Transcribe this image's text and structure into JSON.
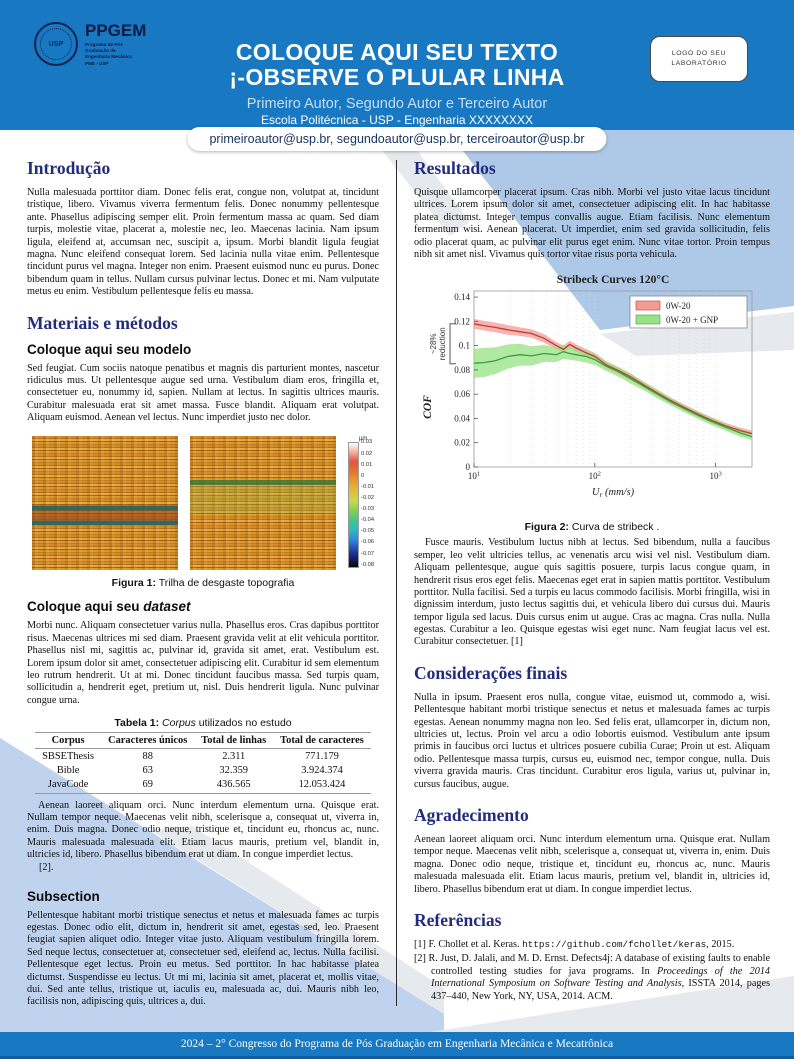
{
  "header": {
    "logo": {
      "acronym": "PPGEM",
      "emblem": "USP",
      "sub_lines": [
        "Programa de Pós",
        "Graduação de",
        "Engenharia Mecânica",
        "PME - USP"
      ]
    },
    "lab_box": {
      "line1": "LOGO DO SEU",
      "line2": "LABORATÓRIO"
    },
    "title_line1": "COLOQUE AQUI SEU TEXTO",
    "title_line2": "¡-OBSERVE O PLULAR LINHA",
    "authors": "Primeiro Autor, Segundo Autor e Terceiro Autor",
    "affiliation": "Escola Politécnica - USP - Engenharia XXXXXXXX",
    "emails": "primeiroautor@usp.br, segundoautor@usp.br, terceiroautor@usp.br"
  },
  "left_column": {
    "intro_heading": "Introdução",
    "intro_body": "Nulla malesuada porttitor diam. Donec felis erat, congue non, volutpat at, tincidunt tristique, libero. Vivamus viverra fermentum felis. Donec nonummy pellentesque ante. Phasellus adipiscing semper elit. Proin fermentum massa ac quam. Sed diam turpis, molestie vitae, placerat a, molestie nec, leo. Maecenas lacinia. Nam ipsum ligula, eleifend at, accumsan nec, suscipit a, ipsum. Morbi blandit ligula feugiat magna. Nunc eleifend consequat lorem. Sed lacinia nulla vitae enim. Pellentesque tincidunt purus vel magna. Integer non enim. Praesent euismod nunc eu purus. Donec bibendum quam in tellus. Nullam cursus pulvinar lectus. Donec et mi. Nam vulputate metus eu enim. Vestibulum pellentesque felis eu massa.",
    "methods_heading": "Materiais e métodos",
    "model_heading": "Coloque aqui seu modelo",
    "model_body": "Sed feugiat. Cum sociis natoque penatibus et magnis dis parturient montes, nascetur ridiculus mus. Ut pellentesque augue sed urna. Vestibulum diam eros, fringilla et, consectetuer eu, nonummy id, sapien. Nullam at lectus. In sagittis ultrices mauris. Curabitur malesuada erat sit amet massa. Fusce blandit. Aliquam erat volutpat. Aliquam euismod. Aenean vel lectus. Nunc imperdiet justo nec dolor.",
    "figure1": {
      "caption_label": "Figura 1:",
      "caption_text": " Trilha de desgaste topografia",
      "colorbar_unit": "µm",
      "colorbar_ticks": [
        "0.03",
        "0.02",
        "0.01",
        "0",
        "-0.01",
        "-0.02",
        "-0.03",
        "-0.04",
        "-0.05",
        "-0.06",
        "-0.07",
        "-0.08"
      ]
    },
    "dataset_heading_prefix": "Coloque aqui seu ",
    "dataset_heading_italic": "dataset",
    "dataset_body": "Morbi nunc. Aliquam consectetuer varius nulla. Phasellus eros. Cras dapibus porttitor risus. Maecenas ultrices mi sed diam. Praesent gravida velit at elit vehicula porttitor. Phasellus nisl mi, sagittis ac, pulvinar id, gravida sit amet, erat. Vestibulum est. Lorem ipsum dolor sit amet, consectetuer adipiscing elit. Curabitur id sem elementum leo rutrum hendrerit. Ut at mi. Donec tincidunt faucibus massa. Sed turpis quam, sollicitudin a, hendrerit eget, pretium ut, nisl. Duis hendrerit ligula. Nunc pulvinar congue urna.",
    "table": {
      "caption_label": "Tabela 1:",
      "caption_italic": " Corpus",
      "caption_rest": " utilizados no estudo",
      "headers": [
        "Corpus",
        "Caracteres únicos",
        "Total de linhas",
        "Total de caracteres"
      ],
      "rows": [
        [
          "SBSEThesis",
          "88",
          "2.311",
          "771.179"
        ],
        [
          "Bible",
          "63",
          "32.359",
          "3.924.374"
        ],
        [
          "JavaCode",
          "69",
          "436.565",
          "12.053.424"
        ]
      ]
    },
    "after_table_body": "Aenean laoreet aliquam orci. Nunc interdum elementum urna. Quisque erat. Nullam tempor neque. Maecenas velit nibh, scelerisque a, consequat ut, viverra in, enim. Duis magna. Donec odio neque, tristique et, tincidunt eu, rhoncus ac, nunc. Mauris malesuada malesuada elit. Etiam lacus mauris, pretium vel, blandit in, ultricies id, libero. Phasellus bibendum erat ut diam. In congue imperdiet lectus.",
    "ref_note": "[2].",
    "subsection_heading": "Subsection",
    "subsection_body": "Pellentesque habitant morbi tristique senectus et netus et malesuada fames ac turpis egestas. Donec odio elit, dictum in, hendrerit sit amet, egestas sed, leo. Praesent feugiat sapien aliquet odio. Integer vitae justo. Aliquam vestibulum fringilla lorem. Sed neque lectus, consectetuer at, consectetuer sed, eleifend ac, lectus. Nulla facilisi. Pellentesque eget lectus. Proin eu metus. Sed porttitor. In hac habitasse platea dictumst. Suspendisse eu lectus. Ut mi mi, lacinia sit amet, placerat et, mollis vitae, dui. Sed ante tellus, tristique ut, iaculis eu, malesuada ac, dui. Mauris nibh leo, facilisis non, adipiscing quis, ultrices a, dui."
  },
  "right_column": {
    "results_heading": "Resultados",
    "results_body": "Quisque ullamcorper placerat ipsum. Cras nibh. Morbi vel justo vitae lacus tincidunt ultrices. Lorem ipsum dolor sit amet, consectetuer adipiscing elit. In hac habitasse platea dictumst. Integer tempus convallis augue. Etiam facilisis. Nunc elementum fermentum wisi. Aenean placerat. Ut imperdiet, enim sed gravida sollicitudin, felis odio placerat quam, ac pulvinar elit purus eget enim. Nunc vitae tortor. Proin tempus nibh sit amet nisl. Vivamus quis tortor vitae risus porta vehicula.",
    "figure2": {
      "caption_label": "Figura 2:",
      "caption_text": " Curva de stribeck ."
    },
    "after_figure_body": "Fusce mauris. Vestibulum luctus nibh at lectus. Sed bibendum, nulla a faucibus semper, leo velit ultricies tellus, ac venenatis arcu wisi vel nisl. Vestibulum diam. Aliquam pellentesque, augue quis sagittis posuere, turpis lacus congue quam, in hendrerit risus eros eget felis. Maecenas eget erat in sapien mattis porttitor. Vestibulum porttitor. Nulla facilisi. Sed a turpis eu lacus commodo facilisis. Morbi fringilla, wisi in dignissim interdum, justo lectus sagittis dui, et vehicula libero dui cursus dui. Mauris tempor ligula sed lacus. Duis cursus enim ut augue. Cras ac magna. Cras nulla. Nulla egestas. Curabitur a leo. Quisque egestas wisi eget nunc. Nam feugiat lacus vel est. Curabitur consectetuer. [1]",
    "final_heading": "Considerações finais",
    "final_body": "Nulla in ipsum. Praesent eros nulla, congue vitae, euismod ut, commodo a, wisi. Pellentesque habitant morbi tristique senectus et netus et malesuada fames ac turpis egestas. Aenean nonummy magna non leo. Sed felis erat, ullamcorper in, dictum non, ultricies ut, lectus. Proin vel arcu a odio lobortis euismod. Vestibulum ante ipsum primis in faucibus orci luctus et ultrices posuere cubilia Curae; Proin ut est. Aliquam odio. Pellentesque massa turpis, cursus eu, euismod nec, tempor congue, nulla. Duis viverra gravida mauris. Cras tincidunt. Curabitur eros ligula, varius ut, pulvinar in, cursus faucibus, augue.",
    "ack_heading": "Agradecimento",
    "ack_body": "Aenean laoreet aliquam orci. Nunc interdum elementum urna. Quisque erat. Nullam tempor neque. Maecenas velit nibh, scelerisque a, consequat ut, viverra in, enim. Duis magna. Donec odio neque, tristique et, tincidunt eu, rhoncus ac, nunc. Mauris malesuada malesuada elit. Etiam lacus mauris, pretium vel, blandit in, ultricies id, libero. Phasellus bibendum erat ut diam. In congue imperdiet lectus.",
    "refs_heading": "Referências",
    "refs": [
      {
        "num": "[1]",
        "segments": [
          {
            "t": "plain",
            "s": "F. Chollet et al. Keras. "
          },
          {
            "t": "mono",
            "s": "https://github.com/fchollet/keras"
          },
          {
            "t": "plain",
            "s": ", 2015."
          }
        ]
      },
      {
        "num": "[2]",
        "segments": [
          {
            "t": "plain",
            "s": "R. Just, D. Jalali, and M. D. Ernst. Defects4j: A database of existing faults to enable controlled testing studies for java programs. In "
          },
          {
            "t": "italic",
            "s": "Proceedings of the 2014 International Symposium on Software Testing and Analysis"
          },
          {
            "t": "plain",
            "s": ", ISSTA 2014, pages 437–440, New York, NY, USA, 2014. ACM."
          }
        ]
      }
    ]
  },
  "footer": {
    "text": "2024 – 2° Congresso do Programa de Pós Graduação em Engenharia Mecânica e Mecatrônica"
  },
  "colors": {
    "header_blue": "#1878c2",
    "heading_navy": "#232c7c",
    "ribbon_blue": "#aec8e8",
    "ribbon_gray": "#e6e9ed",
    "series_red_line": "#c23b34",
    "series_red_band": "#f29b94",
    "series_green_line": "#3c9e3c",
    "series_green_band": "#97e283"
  },
  "chart_data": {
    "type": "line",
    "title": "Stribeck Curves 120°C",
    "xlabel_main": "U",
    "xlabel_sub": "r",
    "xlabel_rest": " (mm/s)",
    "ylabel": "COF",
    "x_scale": "log",
    "xlim": [
      10,
      2000
    ],
    "ylim": [
      0,
      0.145
    ],
    "yticks": [
      {
        "v": 0,
        "l": "0"
      },
      {
        "v": 0.02,
        "l": "0.02"
      },
      {
        "v": 0.04,
        "l": "0.04"
      },
      {
        "v": 0.06,
        "l": "0.06"
      },
      {
        "v": 0.08,
        "l": "0.08"
      },
      {
        "v": 0.1,
        "l": "0.1"
      },
      {
        "v": 0.12,
        "l": "0.12"
      },
      {
        "v": 0.14,
        "l": "0.14"
      }
    ],
    "xticks": [
      {
        "v": 10,
        "base": "10",
        "exp": "1"
      },
      {
        "v": 100,
        "base": "10",
        "exp": "2"
      },
      {
        "v": 1000,
        "base": "10",
        "exp": "3"
      }
    ],
    "legend_position": "top-right",
    "annotation": {
      "text1": "~28%",
      "text2": "reduction",
      "y_from": 0.085,
      "y_to": 0.118
    },
    "series": [
      {
        "name": "0W-20",
        "line_color": "#c23b34",
        "band_color": "#f29b94",
        "x": [
          10,
          12,
          15,
          19,
          24,
          30,
          38,
          48,
          55,
          62,
          70,
          85,
          100,
          125,
          160,
          200,
          260,
          330,
          420,
          550,
          700,
          900,
          1200,
          1600,
          2000
        ],
        "y": [
          0.118,
          0.1165,
          0.115,
          0.113,
          0.1115,
          0.11,
          0.106,
          0.1,
          0.097,
          0.101,
          0.098,
          0.094,
          0.091,
          0.084,
          0.079,
          0.074,
          0.067,
          0.061,
          0.055,
          0.049,
          0.044,
          0.039,
          0.034,
          0.03,
          0.0275
        ],
        "band": [
          0.004,
          0.004,
          0.004,
          0.004,
          0.0035,
          0.0035,
          0.0035,
          0.003,
          0.003,
          0.003,
          0.003,
          0.003,
          0.003,
          0.003,
          0.0028,
          0.0028,
          0.0026,
          0.0026,
          0.0025,
          0.0025,
          0.0025,
          0.0025,
          0.0025,
          0.0025,
          0.0025
        ]
      },
      {
        "name": "0W-20 + GNP",
        "line_color": "#3c9e3c",
        "band_color": "#97e283",
        "x": [
          10,
          12,
          15,
          19,
          24,
          30,
          38,
          48,
          55,
          62,
          70,
          85,
          100,
          125,
          160,
          200,
          260,
          330,
          420,
          550,
          700,
          900,
          1200,
          1600,
          2000
        ],
        "y": [
          0.0855,
          0.086,
          0.0875,
          0.091,
          0.0925,
          0.0915,
          0.0935,
          0.0925,
          0.095,
          0.0935,
          0.0925,
          0.091,
          0.0885,
          0.083,
          0.078,
          0.0725,
          0.066,
          0.06,
          0.054,
          0.048,
          0.043,
          0.038,
          0.033,
          0.028,
          0.025
        ],
        "band": [
          0.012,
          0.012,
          0.011,
          0.01,
          0.009,
          0.008,
          0.007,
          0.006,
          0.006,
          0.005,
          0.005,
          0.005,
          0.0045,
          0.004,
          0.004,
          0.004,
          0.0035,
          0.0035,
          0.003,
          0.003,
          0.003,
          0.003,
          0.003,
          0.003,
          0.003
        ]
      }
    ]
  }
}
